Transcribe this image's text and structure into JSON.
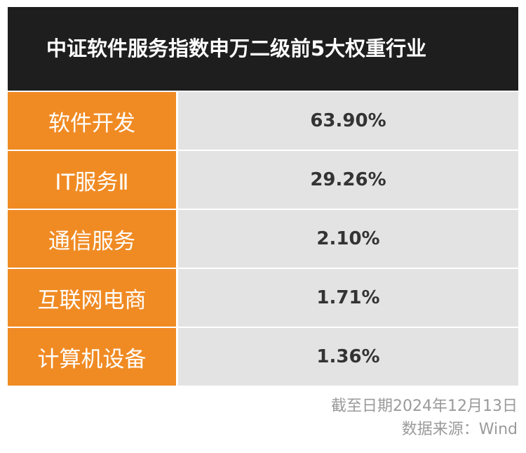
{
  "colors": {
    "header_bg": "#1e1e1e",
    "category_bg": "#f08b24",
    "value_bg": "#e3e3e3",
    "footer_text": "#9a9a9a"
  },
  "chart_data": {
    "type": "table",
    "title": "中证软件服务指数申万二级前5大权重行业",
    "rows": [
      {
        "category": "软件开发",
        "value": "63.90%"
      },
      {
        "category": "IT服务Ⅱ",
        "value": "29.26%"
      },
      {
        "category": "通信服务",
        "value": "2.10%"
      },
      {
        "category": "互联网电商",
        "value": "1.71%"
      },
      {
        "category": "计算机设备",
        "value": "1.36%"
      }
    ]
  },
  "footer": {
    "date_note": "截至日期2024年12月13日",
    "source_note": "数据来源：Wind"
  }
}
